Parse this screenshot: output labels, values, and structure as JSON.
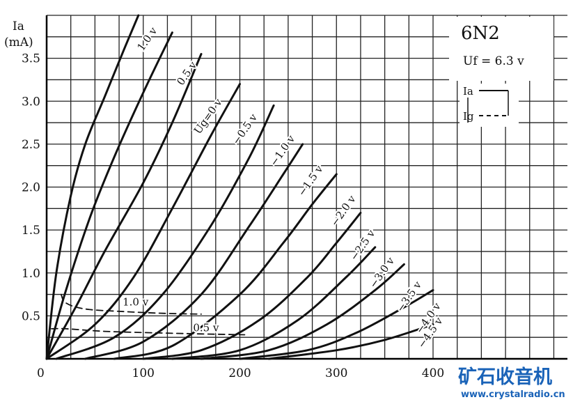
{
  "chart_data": {
    "type": "line",
    "title": "6N2",
    "subtitle": "Uf = 6.3 v",
    "ylabel": "Ia",
    "yunit": "(mA)",
    "xlim": [
      0,
      400
    ],
    "ylim": [
      0,
      4.0
    ],
    "x_ticks": [
      "0",
      "100",
      "200",
      "300",
      "400"
    ],
    "y_ticks": [
      {
        "v": 0.5,
        "label": "0.5"
      },
      {
        "v": 1.0,
        "label": "1.0"
      },
      {
        "v": 1.5,
        "label": "1.5"
      },
      {
        "v": 2.0,
        "label": "2.0"
      },
      {
        "v": 2.5,
        "label": "2.5"
      },
      {
        "v": 3.0,
        "label": "3.0"
      },
      {
        "v": 3.5,
        "label": "3.5"
      }
    ],
    "grid": true,
    "legend": [
      {
        "label": "Ia",
        "style": "solid"
      },
      {
        "label": "Ig",
        "style": "dashed"
      }
    ],
    "series": [
      {
        "name": "1.0 v",
        "style": "solid",
        "points": [
          [
            0,
            0
          ],
          [
            10,
            1.0
          ],
          [
            25,
            1.9
          ],
          [
            40,
            2.5
          ],
          [
            60,
            3.05
          ],
          [
            80,
            3.6
          ],
          [
            95,
            4.0
          ]
        ],
        "label_at": [
          107,
          3.7
        ]
      },
      {
        "name": "0.5 v",
        "style": "solid",
        "points": [
          [
            0,
            0
          ],
          [
            20,
            0.8
          ],
          [
            45,
            1.65
          ],
          [
            70,
            2.35
          ],
          [
            100,
            3.1
          ],
          [
            130,
            3.8
          ]
        ],
        "label_at": [
          148,
          3.3
        ]
      },
      {
        "name": "Ug=0 v",
        "style": "solid",
        "points": [
          [
            0,
            0
          ],
          [
            30,
            0.6
          ],
          [
            60,
            1.25
          ],
          [
            100,
            2.05
          ],
          [
            130,
            2.75
          ],
          [
            160,
            3.55
          ]
        ],
        "label_at": [
          170,
          2.8
        ]
      },
      {
        "name": "−0.5 v",
        "style": "solid",
        "points": [
          [
            0,
            0
          ],
          [
            50,
            0.4
          ],
          [
            90,
            0.95
          ],
          [
            130,
            1.75
          ],
          [
            170,
            2.6
          ],
          [
            200,
            3.2
          ]
        ],
        "label_at": [
          208,
          2.65
        ]
      },
      {
        "name": "−1.0 v",
        "style": "solid",
        "points": [
          [
            10,
            0
          ],
          [
            70,
            0.25
          ],
          [
            120,
            0.75
          ],
          [
            170,
            1.55
          ],
          [
            210,
            2.35
          ],
          [
            235,
            2.95
          ]
        ],
        "label_at": [
          247,
          2.4
        ]
      },
      {
        "name": "−1.5 v",
        "style": "solid",
        "points": [
          [
            40,
            0
          ],
          [
            100,
            0.2
          ],
          [
            160,
            0.75
          ],
          [
            210,
            1.55
          ],
          [
            245,
            2.15
          ],
          [
            265,
            2.5
          ]
        ],
        "label_at": [
          276,
          2.05
        ]
      },
      {
        "name": "−2.0 v",
        "style": "solid",
        "points": [
          [
            70,
            0
          ],
          [
            130,
            0.15
          ],
          [
            200,
            0.75
          ],
          [
            245,
            1.35
          ],
          [
            275,
            1.8
          ],
          [
            300,
            2.15
          ]
        ],
        "label_at": [
          310,
          1.7
        ]
      },
      {
        "name": "−2.5 v",
        "style": "solid",
        "points": [
          [
            100,
            0
          ],
          [
            160,
            0.1
          ],
          [
            220,
            0.45
          ],
          [
            270,
            0.95
          ],
          [
            300,
            1.35
          ],
          [
            325,
            1.7
          ]
        ],
        "label_at": [
          330,
          1.3
        ]
      },
      {
        "name": "−3.0 v",
        "style": "solid",
        "points": [
          [
            130,
            0
          ],
          [
            200,
            0.1
          ],
          [
            260,
            0.45
          ],
          [
            310,
            0.95
          ],
          [
            340,
            1.3
          ]
        ],
        "label_at": [
          350,
          0.98
        ]
      },
      {
        "name": "−3.5 v",
        "style": "solid",
        "points": [
          [
            160,
            0
          ],
          [
            230,
            0.1
          ],
          [
            290,
            0.4
          ],
          [
            340,
            0.8
          ],
          [
            370,
            1.1
          ]
        ],
        "label_at": [
          378,
          0.7
        ]
      },
      {
        "name": "−4.0 v",
        "style": "solid",
        "points": [
          [
            200,
            0
          ],
          [
            270,
            0.1
          ],
          [
            320,
            0.3
          ],
          [
            370,
            0.6
          ],
          [
            400,
            0.8
          ]
        ],
        "label_at": [
          398,
          0.45
        ]
      },
      {
        "name": "−4.5 v",
        "style": "solid",
        "points": [
          [
            230,
            0
          ],
          [
            300,
            0.1
          ],
          [
            350,
            0.22
          ],
          [
            400,
            0.4
          ]
        ],
        "label_at": [
          400,
          0.28
        ]
      },
      {
        "name": "1.0 v",
        "style": "dashed",
        "points": [
          [
            15,
            0.75
          ],
          [
            20,
            0.65
          ],
          [
            40,
            0.58
          ],
          [
            80,
            0.55
          ],
          [
            120,
            0.53
          ],
          [
            160,
            0.52
          ]
        ],
        "label_at": [
          92,
          0.62
        ]
      },
      {
        "name": "0.5 v",
        "style": "dashed",
        "points": [
          [
            5,
            0.35
          ],
          [
            20,
            0.35
          ],
          [
            60,
            0.32
          ],
          [
            120,
            0.3
          ],
          [
            160,
            0.29
          ],
          [
            205,
            0.28
          ]
        ],
        "label_at": [
          165,
          0.32
        ]
      }
    ]
  },
  "watermark": {
    "brand": "矿石收音机",
    "url": "www.crystalradio.cn"
  }
}
